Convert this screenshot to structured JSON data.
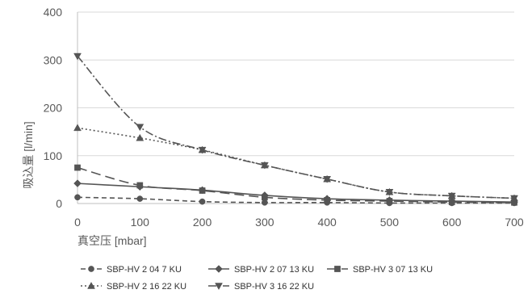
{
  "chart_data": {
    "type": "line",
    "title": "",
    "xlabel": "真空压 [mbar]",
    "ylabel": "吸込量 [l/min]",
    "xlim": [
      0,
      700
    ],
    "ylim": [
      0,
      400
    ],
    "x_ticks": [
      "0",
      "100",
      "200",
      "300",
      "400",
      "500",
      "600",
      "700"
    ],
    "y_ticks": [
      "0",
      "100",
      "200",
      "300",
      "400"
    ],
    "grid": "horizontal",
    "legend_position": "bottom",
    "series": [
      {
        "name": "SBP-HV 2 04 7 KU",
        "marker": "circle",
        "dash": "6,4",
        "x": [
          0,
          100,
          200,
          300,
          400,
          500,
          600,
          700
        ],
        "y": [
          13,
          10,
          4,
          2,
          2,
          1,
          1,
          1
        ]
      },
      {
        "name": "SBP-HV 2 07 13 KU",
        "marker": "diamond",
        "dash": "",
        "x": [
          0,
          100,
          200,
          300,
          400,
          500,
          600,
          700
        ],
        "y": [
          42,
          35,
          28,
          17,
          10,
          7,
          5,
          3
        ]
      },
      {
        "name": "SBP-HV 3 07 13 KU",
        "marker": "square",
        "dash": "12,6",
        "x": [
          0,
          100,
          200,
          300,
          400,
          500,
          600,
          700
        ],
        "y": [
          75,
          38,
          27,
          13,
          7,
          5,
          3,
          2
        ]
      },
      {
        "name": "SBP-HV 2 16 22 KU",
        "marker": "triangle-up",
        "dash": "2,3",
        "x": [
          0,
          100,
          200,
          300,
          400,
          500,
          600,
          700
        ],
        "y": [
          158,
          137,
          112,
          80,
          51,
          24,
          16,
          11
        ]
      },
      {
        "name": "SBP-HV 3 16 22 KU",
        "marker": "triangle-down",
        "dash": "10,3,2,3",
        "x": [
          0,
          100,
          200,
          300,
          400,
          500,
          600,
          700
        ],
        "y": [
          308,
          160,
          112,
          80,
          51,
          24,
          16,
          11
        ]
      }
    ],
    "colors": {
      "series": "#555555",
      "grid": "#d9d9d9",
      "axis": "#bfbfbf",
      "text": "#595959"
    }
  }
}
